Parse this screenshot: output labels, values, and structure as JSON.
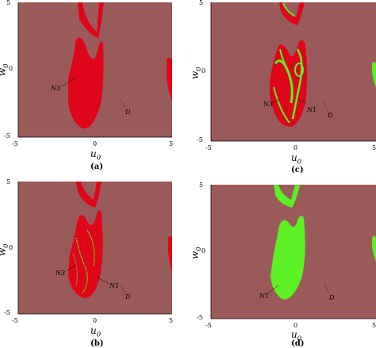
{
  "colors": {
    "background": "#9b5a5a",
    "red": "#e0061a",
    "green": "#5cf025"
  },
  "axes": {
    "x_label": "u",
    "x_label_sub": "0",
    "y_label": "w",
    "y_label_sub": "0",
    "ticks": [
      "-5",
      "0",
      "5"
    ],
    "y_ticks": [
      "5",
      "0",
      "-5"
    ]
  },
  "panels": [
    {
      "caption": "(a)",
      "annotations": [
        "N3",
        "D"
      ]
    },
    {
      "caption": "(c)",
      "annotations": [
        "N3",
        "N1",
        "D"
      ]
    },
    {
      "caption": "(b)",
      "annotations": [
        "N3",
        "N1",
        "D"
      ]
    },
    {
      "caption": "(d)",
      "annotations": [
        "N1",
        "D"
      ]
    }
  ]
}
